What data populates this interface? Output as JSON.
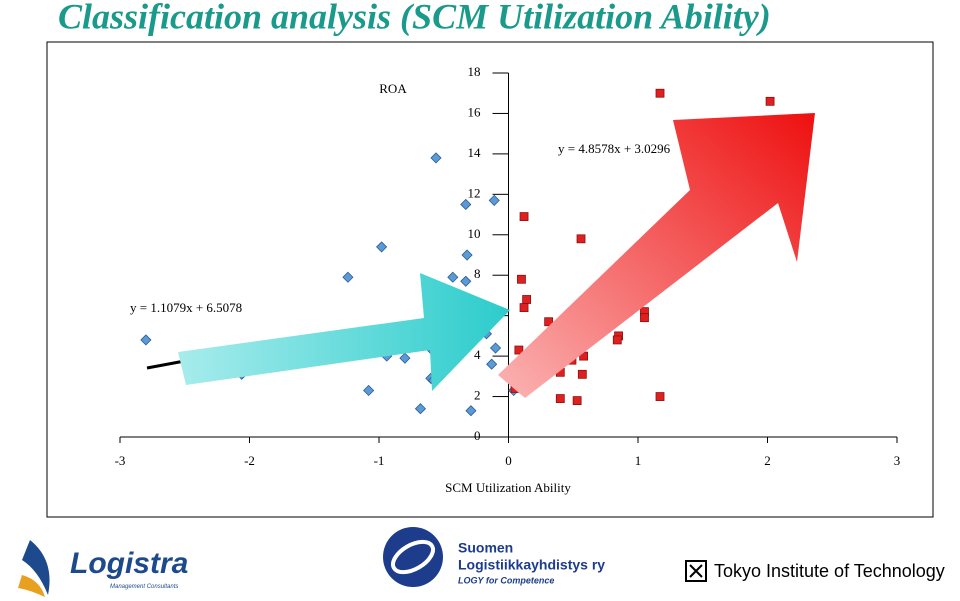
{
  "chart_data": {
    "type": "scatter",
    "title": "Classification analysis (SCM Utilization Ability)",
    "xlabel": "SCM Utilization Ability",
    "ylabel": "ROA",
    "annotations": [
      "y = 4.8578x + 3.0296",
      "y = 1.1079x + 6.5078"
    ],
    "xlim": [
      -3,
      3
    ],
    "xticks": [
      -3,
      -2,
      -1,
      0,
      1,
      2,
      3
    ],
    "ylim": [
      0,
      18
    ],
    "yticks": [
      0,
      2,
      4,
      6,
      8,
      10,
      12,
      14,
      16,
      18
    ],
    "series": [
      {
        "color": "#5b9bd5",
        "marker": "diamond",
        "x": [
          -2.8,
          -2.06,
          -1.24,
          -0.98,
          -1.08,
          -0.98,
          -0.94,
          -0.8,
          -0.68,
          -0.68,
          -0.6,
          -0.58,
          -0.59,
          -0.56,
          -0.43,
          -0.33,
          -0.33,
          -0.32,
          -0.29,
          -0.11,
          -0.17,
          -0.1,
          -0.13,
          0.04
        ],
        "values": [
          4.8,
          3.1,
          7.9,
          9.4,
          2.3,
          4.3,
          4.0,
          3.9,
          1.4,
          4.8,
          2.9,
          2.8,
          4.3,
          13.8,
          7.9,
          7.7,
          11.5,
          9.0,
          1.3,
          11.7,
          5.1,
          4.4,
          3.6,
          2.3
        ]
      },
      {
        "color": "#e02020",
        "marker": "square",
        "x": [
          0.12,
          0.1,
          0.14,
          0.12,
          0.56,
          1.17,
          2.02,
          0.31,
          1.05,
          1.05,
          0.85,
          0.84,
          0.08,
          0.49,
          0.58,
          0.4,
          0.57,
          0.4,
          0.53,
          1.17,
          0.25,
          0.21,
          0.05
        ],
        "values": [
          10.9,
          7.8,
          6.8,
          6.4,
          9.8,
          17.0,
          16.6,
          5.7,
          6.2,
          5.9,
          5.0,
          4.8,
          4.3,
          3.8,
          4.0,
          3.2,
          3.1,
          1.9,
          1.8,
          2.0,
          3.1,
          3.0,
          2.4
        ]
      }
    ]
  },
  "logos": {
    "logistra": "Logistra",
    "logistra_sub": "Management Consultants",
    "logy_1": "Suomen",
    "logy_2": "Logistiikkayhdistys ry",
    "logy_3": "LOGY for Competence",
    "tokyo": "Tokyo Institute of Technology"
  }
}
